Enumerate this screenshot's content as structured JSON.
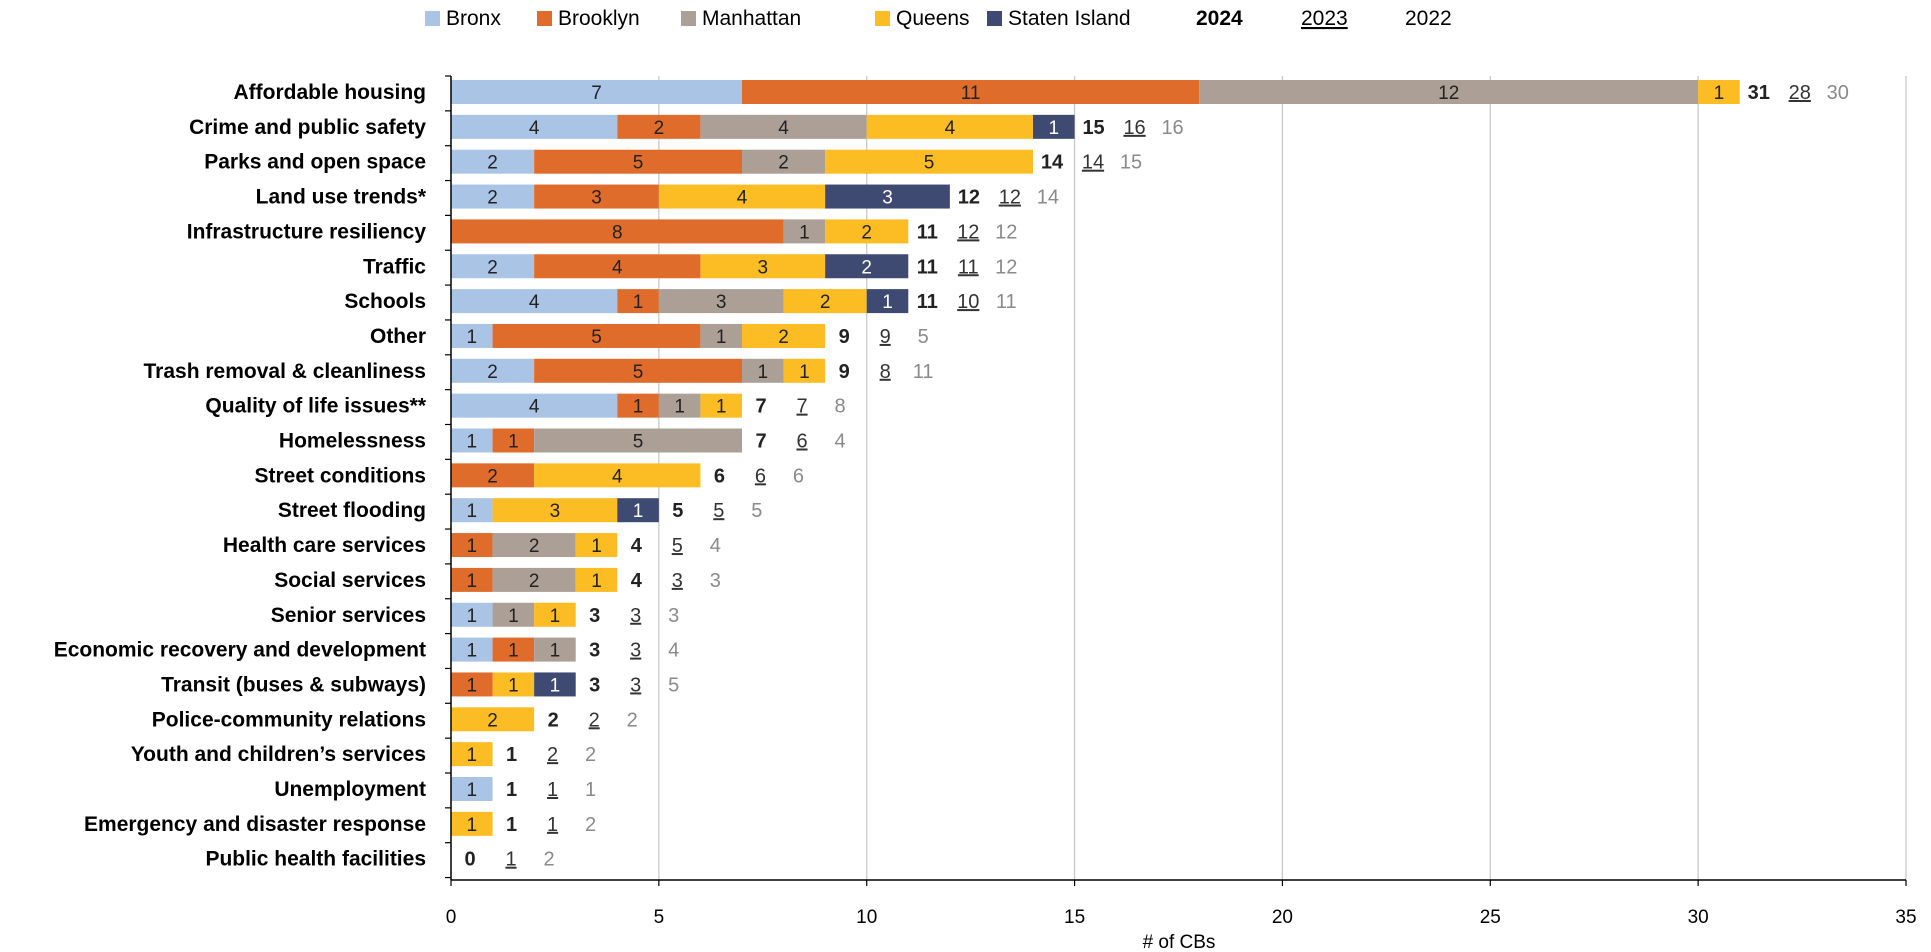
{
  "chart_data": {
    "type": "bar",
    "orientation": "horizontal",
    "stacked": true,
    "xlabel": "# of CBs",
    "xlim": [
      0,
      35
    ],
    "xticks": [
      0,
      5,
      10,
      15,
      20,
      25,
      30,
      35
    ],
    "grid": "vertical",
    "legend_position": "top",
    "categories": [
      "Affordable housing",
      "Crime and public safety",
      "Parks and open space",
      "Land use trends*",
      "Infrastructure resiliency",
      "Traffic",
      "Schools",
      "Other",
      "Trash removal & cleanliness",
      "Quality of life issues**",
      "Homelessness",
      "Street conditions",
      "Street flooding",
      "Health care services",
      "Social services",
      "Senior services",
      "Economic recovery and development",
      "Transit (buses & subways)",
      "Police-community relations",
      "Youth and children’s services",
      "Unemployment",
      "Emergency and disaster response",
      "Public health facilities"
    ],
    "series": [
      {
        "name": "Bronx",
        "color": "#a9c4e4",
        "label_color": "#222222",
        "values": [
          7,
          4,
          2,
          2,
          0,
          2,
          4,
          1,
          2,
          4,
          1,
          0,
          1,
          0,
          0,
          1,
          1,
          0,
          0,
          0,
          1,
          0,
          0
        ]
      },
      {
        "name": "Brooklyn",
        "color": "#e06c2c",
        "label_color": "#222222",
        "values": [
          11,
          2,
          5,
          3,
          8,
          4,
          1,
          5,
          5,
          1,
          1,
          2,
          0,
          1,
          1,
          0,
          1,
          1,
          0,
          0,
          0,
          0,
          0
        ]
      },
      {
        "name": "Manhattan",
        "color": "#aca096",
        "label_color": "#222222",
        "values": [
          12,
          4,
          2,
          0,
          1,
          0,
          3,
          1,
          1,
          1,
          5,
          0,
          0,
          2,
          2,
          1,
          1,
          0,
          0,
          0,
          0,
          0,
          0
        ]
      },
      {
        "name": "Queens",
        "color": "#fbbc24",
        "label_color": "#222222",
        "values": [
          1,
          4,
          5,
          4,
          2,
          3,
          2,
          2,
          1,
          1,
          0,
          4,
          3,
          1,
          1,
          1,
          0,
          1,
          2,
          1,
          0,
          1,
          0
        ]
      },
      {
        "name": "Staten Island",
        "color": "#3e4a72",
        "label_color": "#ffffff",
        "values": [
          0,
          1,
          0,
          3,
          0,
          2,
          1,
          0,
          0,
          0,
          0,
          0,
          1,
          0,
          0,
          0,
          0,
          1,
          0,
          0,
          0,
          0,
          0
        ]
      }
    ],
    "year_totals": {
      "labels": [
        "2024",
        "2023",
        "2022"
      ],
      "y2024": [
        31,
        15,
        14,
        12,
        11,
        11,
        11,
        9,
        9,
        7,
        7,
        6,
        5,
        4,
        4,
        3,
        3,
        3,
        2,
        1,
        1,
        1,
        0
      ],
      "y2023": [
        28,
        16,
        14,
        12,
        12,
        11,
        10,
        9,
        8,
        7,
        6,
        6,
        5,
        5,
        3,
        3,
        3,
        3,
        2,
        2,
        1,
        1,
        1
      ],
      "y2022": [
        30,
        16,
        15,
        14,
        12,
        12,
        11,
        5,
        11,
        8,
        4,
        6,
        5,
        4,
        3,
        3,
        4,
        5,
        2,
        2,
        1,
        2,
        2
      ]
    }
  }
}
